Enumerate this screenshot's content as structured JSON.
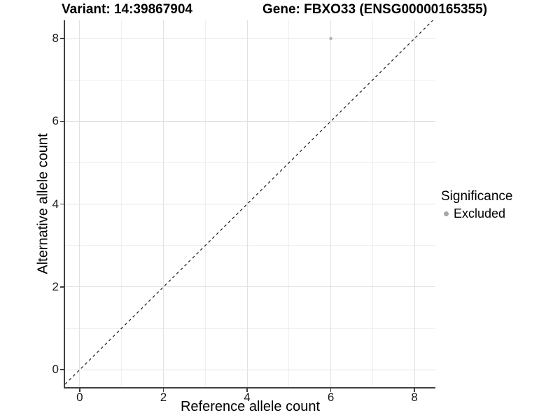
{
  "header": {
    "variant_title": "Variant: 14:39867904",
    "gene_title": "Gene: FBXO33 (ENSG00000165355)"
  },
  "chart_data": {
    "type": "scatter",
    "xlabel": "Reference allele count",
    "ylabel": "Alternative allele count",
    "xlim": [
      -0.35,
      8.5
    ],
    "ylim": [
      -0.42,
      8.44
    ],
    "x_major_ticks": [
      0,
      2,
      4,
      6,
      8
    ],
    "y_major_ticks": [
      0,
      2,
      4,
      6,
      8
    ],
    "x_minor_gridlines": [
      1,
      3,
      5,
      7
    ],
    "y_minor_gridlines": [
      1,
      3,
      5,
      7
    ],
    "grid": true,
    "points": [
      {
        "x": 6,
        "y": 8,
        "series": "Excluded",
        "color": "#b5b5b5",
        "r": 2.3
      }
    ],
    "identity_line": {
      "style": "dashed",
      "from": -0.35,
      "to": 8.44,
      "color": "#1a1a1a"
    },
    "legend": {
      "position": "right",
      "title": "Significance",
      "items": [
        {
          "label": "Excluded",
          "color": "#a6a6a6"
        }
      ]
    }
  },
  "colors": {
    "axis_line": "#3f3f3f",
    "grid_major": "#e2e2e2",
    "grid_minor": "#efefef",
    "background": "#ffffff"
  }
}
